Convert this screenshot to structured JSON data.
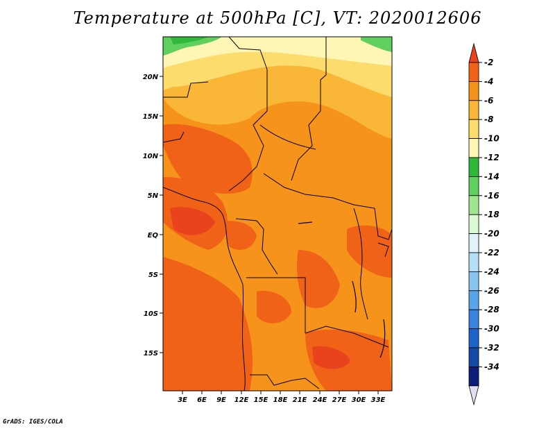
{
  "title": "Temperature at 500hPa [C], VT: 2020012606",
  "credit": "GrADS: IGES/COLA",
  "map": {
    "lat_labels": [
      "20N",
      "15N",
      "10N",
      "5N",
      "EQ",
      "5S",
      "10S",
      "15S"
    ],
    "lon_labels": [
      "3E",
      "6E",
      "9E",
      "12E",
      "15E",
      "18E",
      "21E",
      "24E",
      "27E",
      "30E",
      "33E"
    ]
  },
  "colorbar": {
    "labels": [
      "-2",
      "-4",
      "-6",
      "-8",
      "-10",
      "-12",
      "-14",
      "-16",
      "-18",
      "-20",
      "-22",
      "-24",
      "-26",
      "-28",
      "-30",
      "-32",
      "-34"
    ],
    "colors": [
      "#e8431c",
      "#f06218",
      "#f5931b",
      "#f9b637",
      "#fcdc6d",
      "#fff5b5",
      "#2fb839",
      "#5fd05d",
      "#a1e58f",
      "#dcf8d4",
      "#e0f3fb",
      "#b4dff6",
      "#8ac5ef",
      "#5aa5ea",
      "#3883e0",
      "#1e63c9",
      "#1549a6",
      "#0c1e78",
      "#e0e0f5"
    ]
  }
}
